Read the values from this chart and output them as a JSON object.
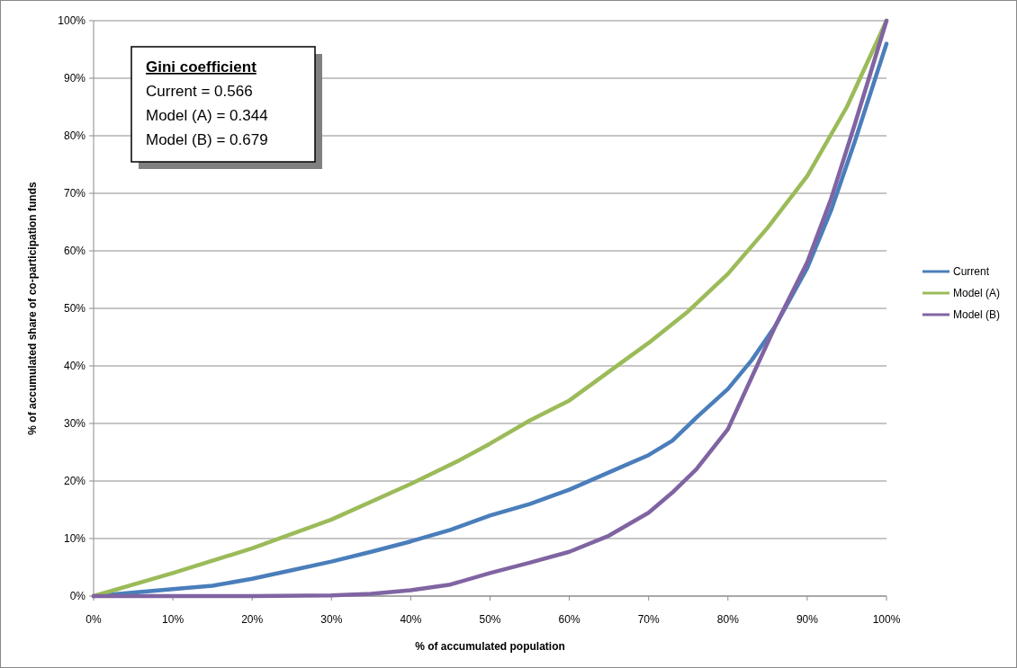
{
  "chart_data": {
    "type": "line",
    "xlabel": "% of accumulated population",
    "ylabel": "% of accumulated share of co-participation funds",
    "xlim": [
      0,
      100
    ],
    "ylim": [
      0,
      100
    ],
    "xticks": [
      {
        "value": 0,
        "label": "0%"
      },
      {
        "value": 10,
        "label": "10%"
      },
      {
        "value": 20,
        "label": "20%"
      },
      {
        "value": 30,
        "label": "30%"
      },
      {
        "value": 40,
        "label": "40%"
      },
      {
        "value": 50,
        "label": "50%"
      },
      {
        "value": 60,
        "label": "60%"
      },
      {
        "value": 70,
        "label": "70%"
      },
      {
        "value": 80,
        "label": "80%"
      },
      {
        "value": 90,
        "label": "90%"
      },
      {
        "value": 100,
        "label": "100%"
      }
    ],
    "yticks": [
      {
        "value": 0,
        "label": "0%"
      },
      {
        "value": 10,
        "label": "10%"
      },
      {
        "value": 20,
        "label": "20%"
      },
      {
        "value": 30,
        "label": "30%"
      },
      {
        "value": 40,
        "label": "40%"
      },
      {
        "value": 50,
        "label": "50%"
      },
      {
        "value": 60,
        "label": "60%"
      },
      {
        "value": 70,
        "label": "70%"
      },
      {
        "value": 80,
        "label": "80%"
      },
      {
        "value": 90,
        "label": "90%"
      },
      {
        "value": 100,
        "label": "100%"
      }
    ],
    "grid": "y",
    "legend": "right",
    "marker": "none",
    "line_style": "solid",
    "annotations": [
      "Gini coefficient",
      "Current = 0.566",
      "Model (A) = 0.344",
      "Model (B) = 0.679"
    ],
    "series": [
      {
        "name": "Current",
        "color": "#4a7ebb",
        "x": [
          0,
          10,
          15,
          20,
          25,
          30,
          35,
          40,
          45,
          50,
          55,
          60,
          65,
          70,
          73,
          76,
          80,
          83,
          86,
          90,
          93,
          96,
          100
        ],
        "values": [
          0,
          1.2,
          1.8,
          3,
          4.5,
          6,
          7.7,
          9.5,
          11.5,
          14,
          16,
          18.5,
          21.5,
          24.5,
          27,
          31,
          36,
          41,
          47,
          57,
          67,
          79,
          96
        ]
      },
      {
        "name": "Model (A)",
        "color": "#9bbb59",
        "x": [
          0,
          10,
          20,
          30,
          40,
          46,
          50,
          55,
          60,
          65,
          70,
          75,
          80,
          85,
          90,
          95,
          100
        ],
        "values": [
          0,
          4,
          8.3,
          13.3,
          19.5,
          23.5,
          26.5,
          30.5,
          34,
          39,
          44,
          49.5,
          56,
          64,
          73,
          85,
          100
        ]
      },
      {
        "name": "Model (B)",
        "color": "#8064a2",
        "x": [
          0,
          20,
          30,
          35,
          40,
          45,
          50,
          55,
          60,
          65,
          70,
          73,
          76,
          80,
          83,
          86,
          90,
          93,
          96,
          100
        ],
        "values": [
          0,
          0,
          0.1,
          0.4,
          1,
          2,
          4,
          5.8,
          7.7,
          10.5,
          14.5,
          18,
          22,
          29,
          38,
          47,
          58,
          69,
          82,
          100
        ]
      }
    ]
  }
}
